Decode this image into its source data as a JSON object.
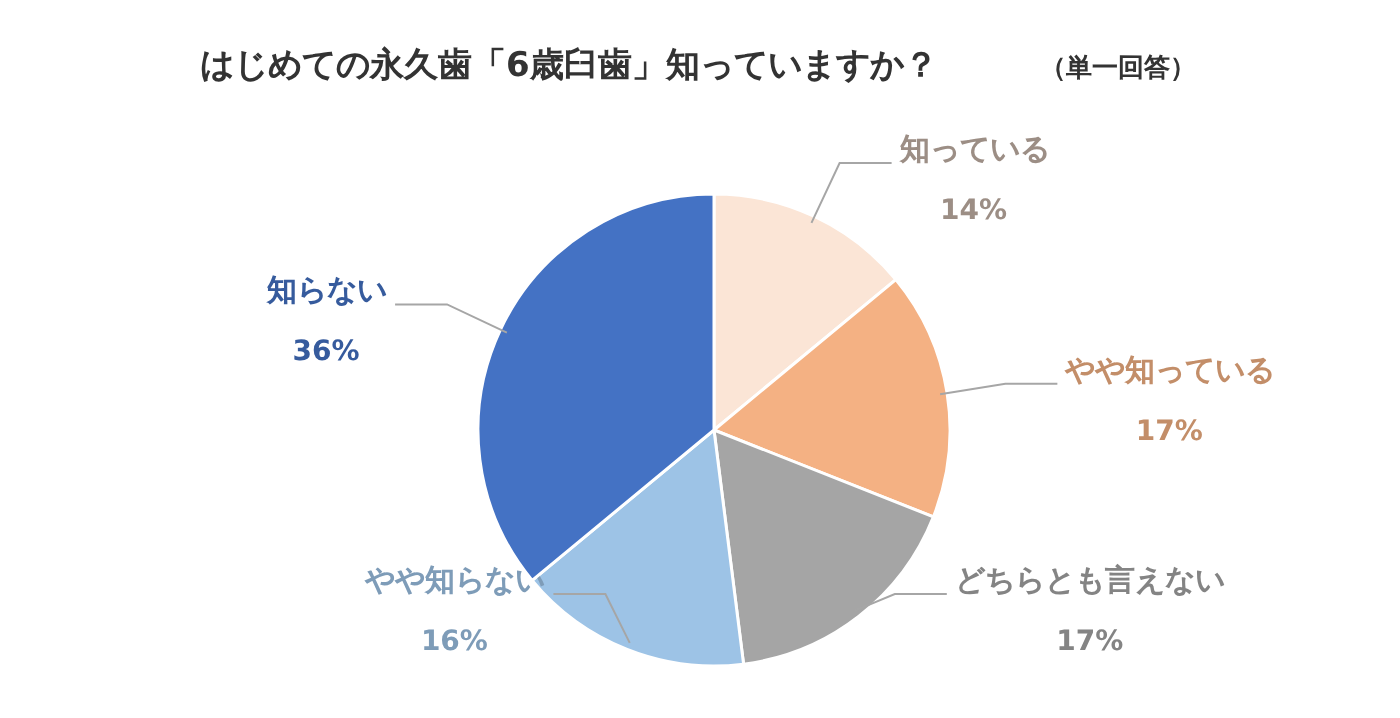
{
  "chart_data": {
    "type": "pie",
    "title": "はじめての永久歯「6歳臼歯」知っていますか？",
    "subtitle": "（単一回答）",
    "categories": [
      "知っている",
      "やや知っている",
      "どちらとも言えない",
      "やや知らない",
      "知らない"
    ],
    "values": [
      14,
      17,
      17,
      16,
      36
    ],
    "value_labels": [
      "14%",
      "17%",
      "17%",
      "16%",
      "36%"
    ],
    "colors": [
      "#fbe5d6",
      "#f4b183",
      "#a5a5a5",
      "#9dc3e6",
      "#4472c4"
    ]
  }
}
